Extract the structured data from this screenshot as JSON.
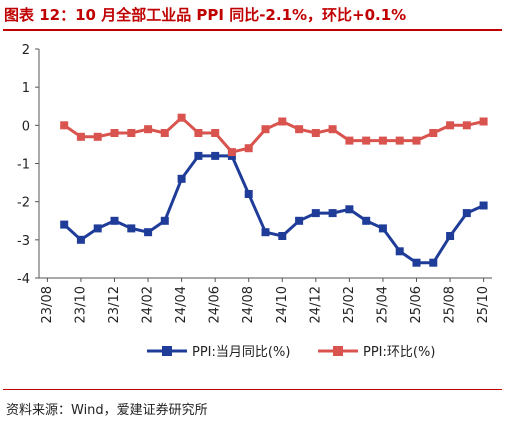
{
  "header": {
    "title": "图表 12：10 月全部工业品 PPI 同比-2.1%，环比+0.1%"
  },
  "footer": {
    "source": "资料来源：Wind，爱建证券研究所"
  },
  "chart_data": {
    "type": "line",
    "x": [
      "23/08",
      "23/09",
      "23/10",
      "23/11",
      "23/12",
      "24/01",
      "24/02",
      "24/03",
      "24/04",
      "24/05",
      "24/06",
      "24/07",
      "24/08",
      "24/09",
      "24/10",
      "24/11",
      "24/12",
      "25/01",
      "25/02",
      "25/03",
      "25/04",
      "25/05",
      "25/06",
      "25/07",
      "25/08",
      "25/09",
      "25/10"
    ],
    "x_tick_labels": [
      "23/08",
      "23/10",
      "23/12",
      "24/02",
      "24/04",
      "24/06",
      "24/08",
      "24/10",
      "24/12",
      "25/02",
      "25/04",
      "25/06",
      "25/08",
      "25/10"
    ],
    "y_tick_labels": [
      "2",
      "1",
      "0",
      "-1",
      "-2",
      "-3",
      "-4"
    ],
    "ylim": [
      -4,
      2
    ],
    "grid": false,
    "legend": "bottom",
    "series": [
      {
        "name": "PPI:当月同比(%)",
        "color": "#1f3c99",
        "values": [
          null,
          -2.6,
          -3.0,
          -2.7,
          -2.5,
          -2.7,
          -2.8,
          -2.5,
          -1.4,
          -0.8,
          -0.8,
          -0.8,
          -1.8,
          -2.8,
          -2.9,
          -2.5,
          -2.3,
          -2.3,
          -2.2,
          -2.5,
          -2.7,
          -3.3,
          -3.6,
          -3.6,
          -2.9,
          -2.3,
          -2.1
        ]
      },
      {
        "name": "PPI:环比(%)",
        "color": "#d9534f",
        "values": [
          null,
          0.0,
          -0.3,
          -0.3,
          -0.2,
          -0.2,
          -0.1,
          -0.2,
          0.2,
          -0.2,
          -0.2,
          -0.7,
          -0.6,
          -0.1,
          0.1,
          -0.1,
          -0.2,
          -0.1,
          -0.4,
          -0.4,
          -0.4,
          -0.4,
          -0.4,
          -0.2,
          0.0,
          0.0,
          0.1
        ]
      }
    ]
  }
}
